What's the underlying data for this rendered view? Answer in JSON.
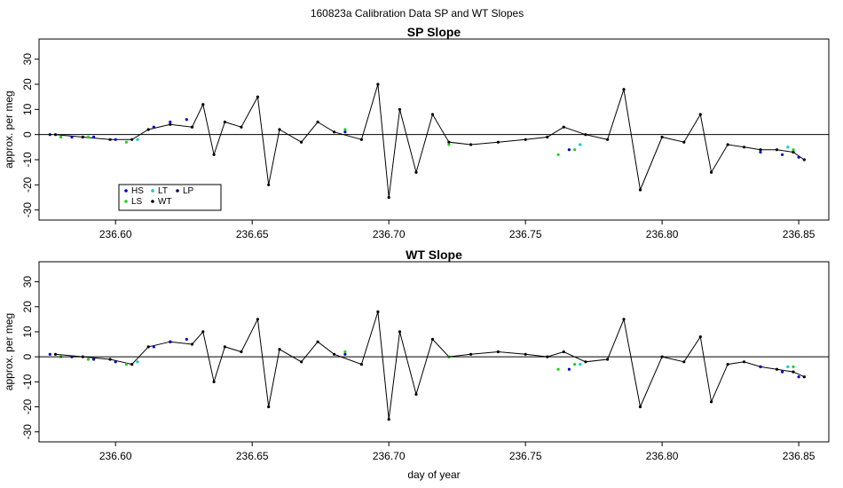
{
  "figure": {
    "title": "160823a   Calibration Data SP and WT Slopes"
  },
  "chart_data": [
    {
      "type": "line",
      "title": "SP Slope",
      "xlabel": "",
      "ylabel": "approx. per meg",
      "xlim": [
        236.572,
        236.861
      ],
      "ylim": [
        -34,
        38
      ],
      "xticks": [
        236.6,
        236.65,
        236.7,
        236.75,
        236.8,
        236.85
      ],
      "xtick_labels": [
        "236.60",
        "236.65",
        "236.70",
        "236.75",
        "236.80",
        "236.85"
      ],
      "yticks": [
        -30,
        -20,
        -10,
        0,
        10,
        20,
        30
      ],
      "ytick_labels": [
        "-30",
        "-20",
        "-10",
        "0",
        "10",
        "20",
        "30"
      ],
      "hline": 0,
      "grid": false,
      "legend": {
        "placement": "bottom-left",
        "entries": [
          {
            "label": "HS",
            "color": "#0000cc"
          },
          {
            "label": "LT",
            "color": "#00cccc"
          },
          {
            "label": "LP",
            "color": "#000066"
          },
          {
            "label": "LS",
            "color": "#22cc22"
          },
          {
            "label": "WT",
            "color": "#000000"
          }
        ]
      },
      "series": [
        {
          "name": "WT",
          "color": "#000000",
          "x": [
            236.578,
            236.588,
            236.598,
            236.606,
            236.612,
            236.62,
            236.628,
            236.632,
            236.636,
            236.64,
            236.646,
            236.652,
            236.656,
            236.66,
            236.668,
            236.674,
            236.68,
            236.69,
            236.696,
            236.7,
            236.704,
            236.71,
            236.716,
            236.722,
            236.73,
            236.74,
            236.75,
            236.758,
            236.764,
            236.772,
            236.78,
            236.786,
            236.792,
            236.8,
            236.808,
            236.814,
            236.818,
            236.824,
            236.83,
            236.836,
            236.842,
            236.848,
            236.852
          ],
          "y": [
            0,
            -1,
            -2,
            -2,
            2,
            4,
            3,
            12,
            -8,
            5,
            3,
            15,
            -20,
            2,
            -3,
            5,
            1,
            -2,
            20,
            -25,
            10,
            -15,
            8,
            -3,
            -4,
            -3,
            -2,
            -1,
            3,
            0,
            -2,
            18,
            -22,
            -1,
            -3,
            8,
            -15,
            -4,
            -5,
            -6,
            -6,
            -7,
            -10
          ]
        },
        {
          "name": "HS",
          "color": "#0000cc",
          "x": [
            236.576,
            236.584,
            236.592,
            236.6,
            236.614,
            236.62,
            236.626,
            236.684,
            236.766,
            236.836,
            236.844,
            236.85
          ],
          "y": [
            0,
            -1,
            -1,
            -2,
            3,
            5,
            6,
            1,
            -6,
            -7,
            -8,
            -9
          ]
        },
        {
          "name": "LS",
          "color": "#22cc22",
          "x": [
            236.58,
            236.59,
            236.604,
            236.684,
            236.722,
            236.762,
            236.768,
            236.848
          ],
          "y": [
            -1,
            -1,
            -3,
            2,
            -4,
            -8,
            -6,
            -6
          ]
        },
        {
          "name": "LT",
          "color": "#00cccc",
          "x": [
            236.608,
            236.77,
            236.846
          ],
          "y": [
            -2,
            -4,
            -5
          ]
        }
      ]
    },
    {
      "type": "line",
      "title": "WT Slope",
      "xlabel": "day of year",
      "ylabel": "approx. per meg",
      "xlim": [
        236.572,
        236.861
      ],
      "ylim": [
        -34,
        38
      ],
      "xticks": [
        236.6,
        236.65,
        236.7,
        236.75,
        236.8,
        236.85
      ],
      "xtick_labels": [
        "236.60",
        "236.65",
        "236.70",
        "236.75",
        "236.80",
        "236.85"
      ],
      "yticks": [
        -30,
        -20,
        -10,
        0,
        10,
        20,
        30
      ],
      "ytick_labels": [
        "-30",
        "-20",
        "-10",
        "0",
        "10",
        "20",
        "30"
      ],
      "hline": 0,
      "grid": false,
      "series": [
        {
          "name": "WT",
          "color": "#000000",
          "x": [
            236.578,
            236.588,
            236.598,
            236.606,
            236.612,
            236.62,
            236.628,
            236.632,
            236.636,
            236.64,
            236.646,
            236.652,
            236.656,
            236.66,
            236.668,
            236.674,
            236.68,
            236.69,
            236.696,
            236.7,
            236.704,
            236.71,
            236.716,
            236.722,
            236.73,
            236.74,
            236.75,
            236.758,
            236.764,
            236.772,
            236.78,
            236.786,
            236.792,
            236.8,
            236.808,
            236.814,
            236.818,
            236.824,
            236.83,
            236.836,
            236.842,
            236.848,
            236.852
          ],
          "y": [
            1,
            0,
            -1,
            -3,
            4,
            6,
            5,
            10,
            -10,
            4,
            2,
            15,
            -20,
            3,
            -2,
            6,
            1,
            -3,
            18,
            -25,
            10,
            -15,
            7,
            0,
            1,
            2,
            1,
            0,
            2,
            -2,
            -1,
            15,
            -20,
            0,
            -2,
            8,
            -18,
            -3,
            -2,
            -4,
            -5,
            -6,
            -8
          ]
        },
        {
          "name": "HS",
          "color": "#0000cc",
          "x": [
            236.576,
            236.584,
            236.592,
            236.6,
            236.614,
            236.62,
            236.626,
            236.684,
            236.766,
            236.836,
            236.844,
            236.85
          ],
          "y": [
            1,
            0,
            -1,
            -2,
            4,
            6,
            7,
            1,
            -5,
            -4,
            -6,
            -8
          ]
        },
        {
          "name": "LS",
          "color": "#22cc22",
          "x": [
            236.58,
            236.59,
            236.604,
            236.684,
            236.722,
            236.762,
            236.768,
            236.848
          ],
          "y": [
            0,
            -1,
            -3,
            2,
            0,
            -5,
            -3,
            -4
          ]
        },
        {
          "name": "LT",
          "color": "#00cccc",
          "x": [
            236.608,
            236.77,
            236.846
          ],
          "y": [
            -2,
            -3,
            -4
          ]
        }
      ]
    }
  ]
}
